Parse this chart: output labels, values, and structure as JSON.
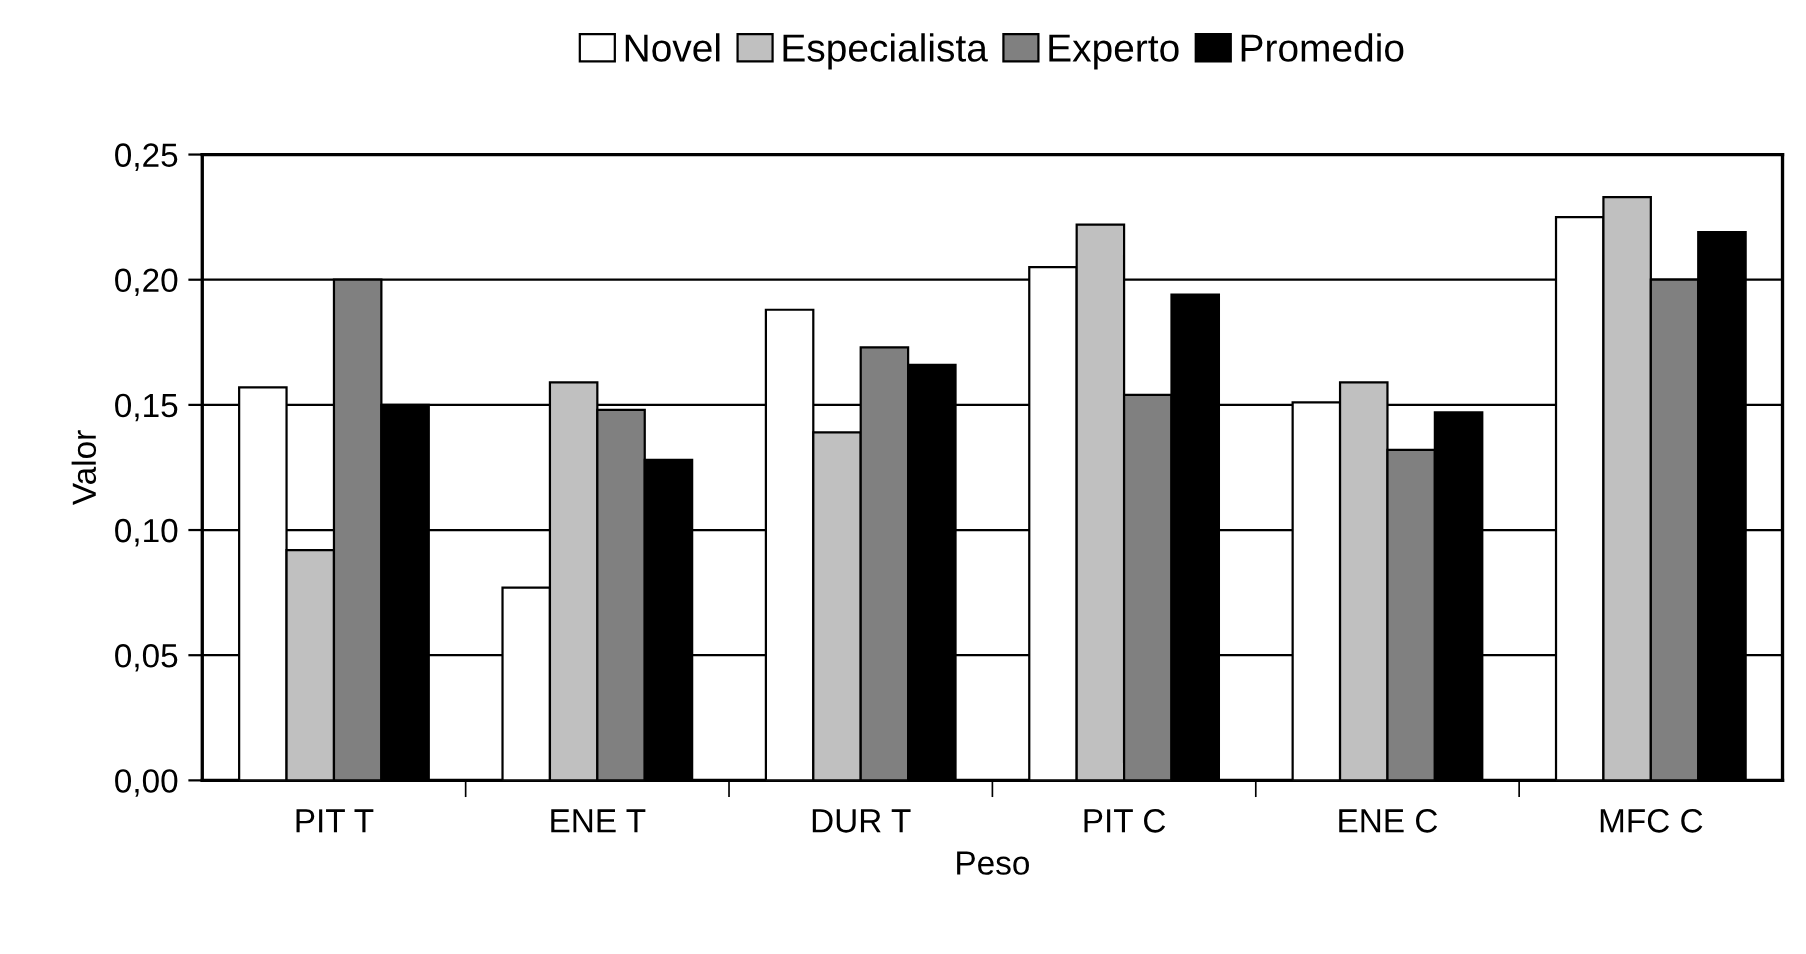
{
  "chart_data": {
    "type": "bar",
    "xlabel": "Peso",
    "ylabel": "Valor",
    "categories": [
      "PIT T",
      "ENE T",
      "DUR T",
      "PIT C",
      "ENE C",
      "MFC C"
    ],
    "series": [
      {
        "name": "Novel",
        "color": "#ffffff",
        "values": [
          0.157,
          0.077,
          0.188,
          0.205,
          0.151,
          0.225
        ]
      },
      {
        "name": "Especialista",
        "color": "#c0c0c0",
        "values": [
          0.092,
          0.159,
          0.139,
          0.222,
          0.159,
          0.233
        ]
      },
      {
        "name": "Experto",
        "color": "#808080",
        "values": [
          0.2,
          0.148,
          0.173,
          0.154,
          0.132,
          0.2
        ]
      },
      {
        "name": "Promedio",
        "color": "#000000",
        "values": [
          0.15,
          0.128,
          0.166,
          0.194,
          0.147,
          0.219
        ]
      }
    ],
    "ylim": [
      0,
      0.25
    ],
    "yticks": [
      {
        "value": 0,
        "label": "0,00"
      },
      {
        "value": 0.05,
        "label": "0,05"
      },
      {
        "value": 0.1,
        "label": "0,10"
      },
      {
        "value": 0.15,
        "label": "0,15"
      },
      {
        "value": 0.2,
        "label": "0,20"
      },
      {
        "value": 0.25,
        "label": "0,25"
      }
    ],
    "grid": "y",
    "legend": "top"
  }
}
